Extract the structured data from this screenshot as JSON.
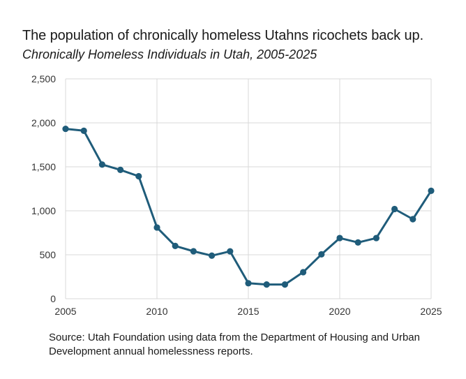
{
  "chart_data": {
    "type": "line",
    "title": "The population of chronically homeless Utahns ricochets back up.",
    "subtitle": "Chronically Homeless Individuals in Utah, 2005-2025",
    "xlabel": "",
    "ylabel": "",
    "x": [
      2005,
      2006,
      2007,
      2008,
      2009,
      2010,
      2011,
      2012,
      2013,
      2014,
      2015,
      2016,
      2017,
      2018,
      2019,
      2020,
      2021,
      2022,
      2023,
      2024,
      2025
    ],
    "series": [
      {
        "values": [
          1932,
          1910,
          1526,
          1465,
          1393,
          810,
          600,
          540,
          490,
          539,
          176,
          162,
          162,
          302,
          505,
          690,
          640,
          690,
          1020,
          905,
          1227
        ]
      }
    ],
    "xlim": [
      2005,
      2025
    ],
    "ylim": [
      0,
      2500
    ],
    "x_ticks": [
      2005,
      2010,
      2015,
      2020,
      2025
    ],
    "y_ticks": [
      0,
      500,
      1000,
      1500,
      2000,
      2500
    ],
    "x_tick_labels": [
      "2005",
      "2010",
      "2015",
      "2020",
      "2025"
    ],
    "y_tick_labels": [
      "0",
      "500",
      "1,000",
      "1,500",
      "2,000",
      "2,500"
    ],
    "grid": true,
    "line_color": "#1f5c7a",
    "grid_color": "#d9d9d9"
  },
  "source": "Source: Utah Foundation using data from the Department of Housing and Urban Development annual homelessness reports."
}
